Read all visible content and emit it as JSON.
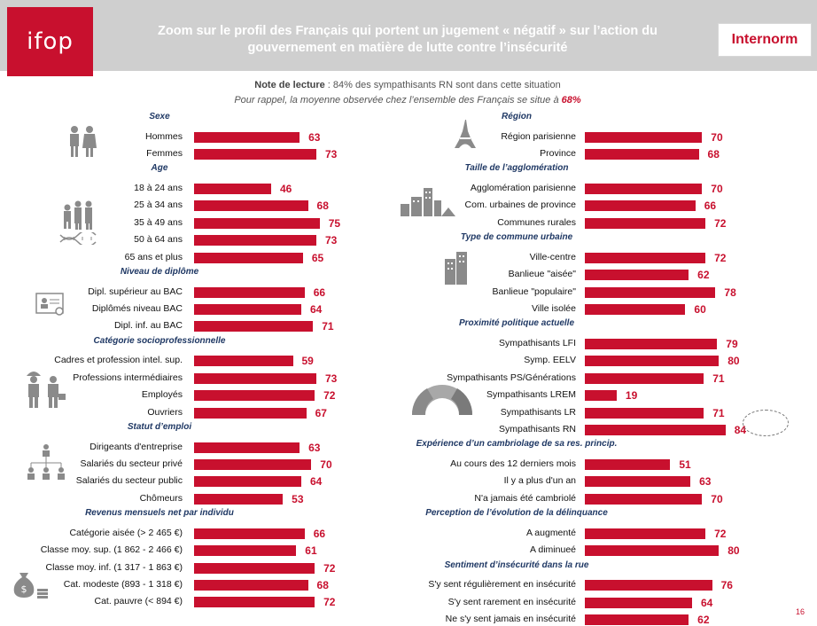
{
  "header": {
    "logo": "ifop",
    "title_line1": "Zoom sur le profil des Français qui portent un jugement « négatif » sur l’action du",
    "title_line2": "gouvernement en matière de lutte contre l’insécurité",
    "brand": "Internorm"
  },
  "notes": {
    "reading_label": "Note de lecture",
    "reading_text": " : 84% des sympathisants RN sont dans cette situation",
    "reminder_text": "Pour rappel, la moyenne observée chez l’ensemble des Français se situe à ",
    "reminder_value": "68%"
  },
  "page_number": "16",
  "colors": {
    "bar": "#c8102e",
    "group_title": "#1f3864"
  },
  "icons": [
    "couple-icon",
    "family-icon",
    "dna-icon",
    "diploma-icon",
    "workers-icon",
    "org-chart-icon",
    "money-bag-icon",
    "eiffel-tower-icon",
    "city-icon",
    "buildings-icon",
    "hemicycle-icon"
  ],
  "chart_data": {
    "type": "bar",
    "orientation": "horizontal",
    "unit": "%",
    "xlim": [
      0,
      100
    ],
    "average": 68,
    "highlighted": "Sympathisants RN",
    "left": [
      {
        "group": "Sexe",
        "rows": [
          {
            "label": "Hommes",
            "value": 63
          },
          {
            "label": "Femmes",
            "value": 73
          }
        ]
      },
      {
        "group": "Age",
        "rows": [
          {
            "label": "18 à 24 ans",
            "value": 46
          },
          {
            "label": "25 à 34 ans",
            "value": 68
          },
          {
            "label": "35 à 49 ans",
            "value": 75
          },
          {
            "label": "50 à 64 ans",
            "value": 73
          },
          {
            "label": "65 ans et plus",
            "value": 65
          }
        ]
      },
      {
        "group": "Niveau de diplôme",
        "rows": [
          {
            "label": "Dipl. supérieur au BAC",
            "value": 66
          },
          {
            "label": "Diplômés niveau BAC",
            "value": 64
          },
          {
            "label": "Dipl. inf. au BAC",
            "value": 71
          }
        ]
      },
      {
        "group": "Catégorie socioprofessionnelle",
        "rows": [
          {
            "label": "Cadres et profession intel. sup.",
            "value": 59
          },
          {
            "label": "Professions intermédiaires",
            "value": 73
          },
          {
            "label": "Employés",
            "value": 72
          },
          {
            "label": "Ouvriers",
            "value": 67
          }
        ]
      },
      {
        "group": "Statut d’emploi",
        "rows": [
          {
            "label": "Dirigeants d'entreprise",
            "value": 63
          },
          {
            "label": "Salariés du secteur privé",
            "value": 70
          },
          {
            "label": "Salariés du secteur public",
            "value": 64
          },
          {
            "label": "Chômeurs",
            "value": 53
          }
        ]
      },
      {
        "group": "Revenus mensuels net par individu",
        "rows": [
          {
            "label": "Catégorie aisée (> 2 465 €)",
            "value": 66
          },
          {
            "label": "Classe moy. sup. (1 862 - 2 466 €)",
            "value": 61
          },
          {
            "label": "Classe moy. inf. (1 317 - 1 863 €)",
            "value": 72
          },
          {
            "label": "Cat. modeste (893 - 1 318 €)",
            "value": 68
          },
          {
            "label": "Cat. pauvre (< 894 €)",
            "value": 72
          }
        ]
      }
    ],
    "right": [
      {
        "group": "Région",
        "rows": [
          {
            "label": "Région parisienne",
            "value": 70
          },
          {
            "label": "Province",
            "value": 68
          }
        ]
      },
      {
        "group": "Taille de l’agglomération",
        "rows": [
          {
            "label": "Agglomération parisienne",
            "value": 70
          },
          {
            "label": "Com. urbaines de province",
            "value": 66
          },
          {
            "label": "Communes rurales",
            "value": 72
          }
        ]
      },
      {
        "group": "Type de commune urbaine",
        "rows": [
          {
            "label": "Ville-centre",
            "value": 72
          },
          {
            "label": "Banlieue \"aisée\"",
            "value": 62
          },
          {
            "label": "Banlieue \"populaire\"",
            "value": 78
          },
          {
            "label": "Ville isolée",
            "value": 60
          }
        ]
      },
      {
        "group": "Proximité politique actuelle",
        "rows": [
          {
            "label": "Sympathisants LFI",
            "value": 79
          },
          {
            "label": "Symp.  EELV",
            "value": 80
          },
          {
            "label": "Sympathisants PS/Générations",
            "value": 71
          },
          {
            "label": "Sympathisants LREM",
            "value": 19
          },
          {
            "label": "Sympathisants LR",
            "value": 71
          },
          {
            "label": "Sympathisants RN",
            "value": 84
          }
        ]
      },
      {
        "group": "Expérience d’un cambriolage de sa res. princip.",
        "rows": [
          {
            "label": "Au cours des 12 derniers mois",
            "value": 51
          },
          {
            "label": "Il y a plus d'un an",
            "value": 63
          },
          {
            "label": "N'a jamais été cambriolé",
            "value": 70
          }
        ]
      },
      {
        "group": "Perception de l’évolution de la délinquance",
        "rows": [
          {
            "label": "A augmenté",
            "value": 72
          },
          {
            "label": "A diminueé",
            "value": 80
          }
        ]
      },
      {
        "group": "Sentiment d’insécurité dans la rue",
        "rows": [
          {
            "label": "S'y sent régulièrement en insécurité",
            "value": 76
          },
          {
            "label": "S'y sent rarement en insécurité",
            "value": 64
          },
          {
            "label": "Ne s'y sent jamais en insécurité",
            "value": 62
          }
        ]
      }
    ]
  }
}
